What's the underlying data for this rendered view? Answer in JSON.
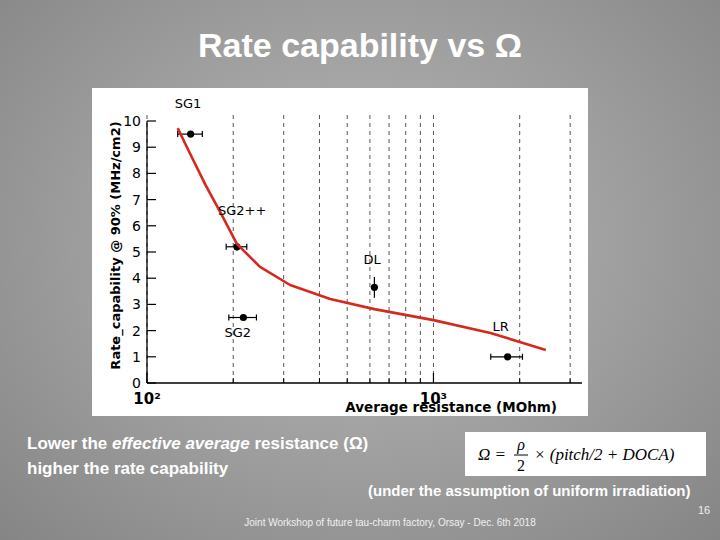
{
  "chart_data": {
    "type": "scatter",
    "title": "Rate capability vs Ω",
    "x_label": "Average resistance (MOhm)",
    "y_label": "Rate_capability @ 90% (MHz/cm2)",
    "log": "x",
    "grid": "x",
    "xlim": [
      100,
      3300
    ],
    "ylim": [
      0,
      10
    ],
    "xticks": [
      {
        "value": 100,
        "label": "10²"
      },
      {
        "value": 1000,
        "label": "10³"
      }
    ],
    "yticks": [
      0,
      1,
      2,
      3,
      4,
      5,
      6,
      7,
      8,
      9,
      10
    ],
    "series": [
      {
        "type": "scatter",
        "color": "#000000",
        "marker": "circle",
        "x": [
          142,
          206,
          622,
          217,
          1815
        ],
        "values": [
          9.5,
          5.2,
          3.65,
          2.5,
          1.0
        ],
        "x_error": [
          14,
          17,
          0,
          24,
          230
        ],
        "y_error": [
          0,
          0.15,
          0.4,
          0.1,
          0
        ],
        "point_labels": [
          "SG1",
          "SG2++",
          "DL",
          "SG2",
          "LR"
        ]
      },
      {
        "type": "line",
        "color": "#d42a1e",
        "x": [
          128,
          141,
          160,
          180,
          206,
          248,
          316,
          436,
          622,
          1000,
          1581,
          2466
        ],
        "values": [
          9.73,
          8.78,
          7.56,
          6.53,
          5.31,
          4.43,
          3.74,
          3.21,
          2.82,
          2.4,
          1.91,
          1.26
        ]
      }
    ]
  },
  "slide": {
    "note_line1": [
      "Lower the ",
      "effective average",
      " resistance (Ω)"
    ],
    "note_line2": "higher the rate capability",
    "formula": {
      "lhs": "Ω =",
      "numerator": "ρ",
      "denominator": "2",
      "rhs": "× (pitch/2 + DOCA)"
    },
    "assumption": "(under the assumption of uniform irradiation)",
    "footer": "Joint Workshop of future tau-charm factory, Orsay  - Dec. 6th 2018",
    "page": 16
  }
}
